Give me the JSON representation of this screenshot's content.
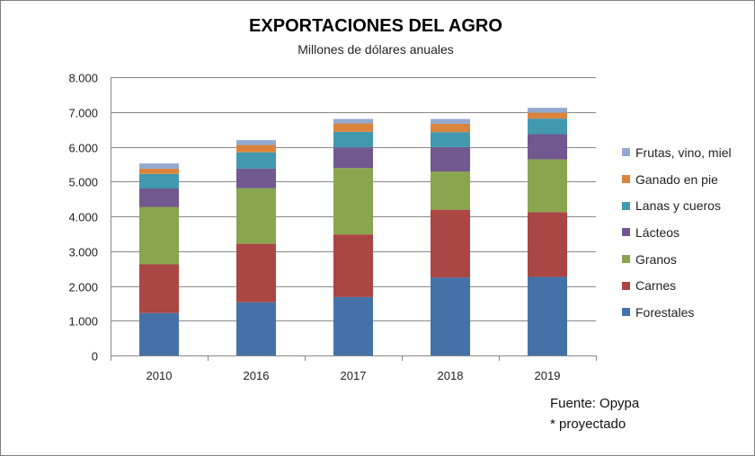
{
  "chart_data": {
    "type": "bar",
    "stacked": true,
    "title": "EXPORTACIONES DEL AGRO",
    "subtitle": "Millones de dólares anuales",
    "categories": [
      "2010",
      "2016",
      "2017",
      "2018",
      "2019"
    ],
    "ylim": [
      0,
      8000
    ],
    "yticks": [
      "0",
      "1.000",
      "2.000",
      "3.000",
      "4.000",
      "5.000",
      "6.000",
      "7.000",
      "8.000"
    ],
    "grid": true,
    "legend_position": "right",
    "series": [
      {
        "name": "Forestales",
        "color": "#4472a8",
        "values": [
          1220,
          1530,
          1680,
          2240,
          2260
        ]
      },
      {
        "name": "Carnes",
        "color": "#aa4644",
        "values": [
          1400,
          1680,
          1800,
          1950,
          1860
        ]
      },
      {
        "name": "Granos",
        "color": "#89a54e",
        "values": [
          1650,
          1600,
          1910,
          1100,
          1520
        ]
      },
      {
        "name": "Lácteos",
        "color": "#71588f",
        "values": [
          530,
          560,
          590,
          700,
          720
        ]
      },
      {
        "name": "Lanas y cueros",
        "color": "#4198af",
        "values": [
          420,
          470,
          450,
          430,
          450
        ]
      },
      {
        "name": "Ganado en pie",
        "color": "#db843d",
        "values": [
          150,
          210,
          240,
          240,
          170
        ]
      },
      {
        "name": "Frutas, vino, miel",
        "color": "#93a9cf",
        "values": [
          150,
          140,
          130,
          140,
          140
        ]
      }
    ]
  },
  "footnote": {
    "source": "Fuente: Opypa",
    "note": "* proyectado"
  }
}
